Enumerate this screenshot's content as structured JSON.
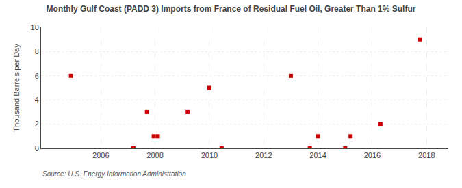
{
  "chart_data": {
    "type": "scatter",
    "title": "Monthly Gulf Coast (PADD 3) Imports from France of Residual Fuel Oil, Greater Than 1% Sulfur",
    "y_label": "Thousand Barrels per Day",
    "annotations": [
      "Source: U.S. Energy Information Administration"
    ],
    "x": [
      2004.9,
      2007.2,
      2007.7,
      2007.95,
      2008.1,
      2009.2,
      2010.0,
      2010.45,
      2013.0,
      2013.7,
      2014.0,
      2015.0,
      2015.2,
      2016.3,
      2017.75
    ],
    "values": [
      6,
      0,
      3,
      1,
      1,
      3,
      5,
      0,
      6,
      0,
      1,
      0,
      1,
      2,
      9
    ],
    "color": "#cc0000",
    "marker": "square",
    "xlim": [
      2003.8,
      2018.8
    ],
    "xticks": [
      2006,
      2008,
      2010,
      2012,
      2014,
      2016,
      2018
    ],
    "ylim": [
      0,
      10
    ],
    "yticks": [
      0,
      2,
      4,
      6,
      8,
      10
    ],
    "grid": true
  }
}
